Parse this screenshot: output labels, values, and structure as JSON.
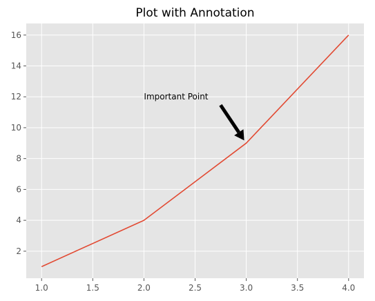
{
  "chart_data": {
    "type": "line",
    "title": "Plot with Annotation",
    "xlabel": "",
    "ylabel": "",
    "x": [
      1,
      2,
      3,
      4
    ],
    "series": [
      {
        "values": [
          1,
          4,
          9,
          16
        ],
        "color": "#e24a33"
      }
    ],
    "xlim": [
      0.85,
      4.15
    ],
    "ylim": [
      0.25,
      16.75
    ],
    "xticks": [
      1.0,
      1.5,
      2.0,
      2.5,
      3.0,
      3.5,
      4.0
    ],
    "xtick_labels": [
      "1.0",
      "1.5",
      "2.0",
      "2.5",
      "3.0",
      "3.5",
      "4.0"
    ],
    "yticks": [
      2,
      4,
      6,
      8,
      10,
      12,
      14,
      16
    ],
    "ytick_labels": [
      "2",
      "4",
      "6",
      "8",
      "10",
      "12",
      "14",
      "16"
    ],
    "grid": true,
    "style": "ggplot",
    "background_color": "#e5e5e5",
    "grid_color": "#ffffff",
    "annotations": [
      {
        "text": "Important Point",
        "xy": [
          3,
          9
        ],
        "xytext": [
          2,
          12
        ],
        "arrow_color": "#000000"
      }
    ]
  }
}
